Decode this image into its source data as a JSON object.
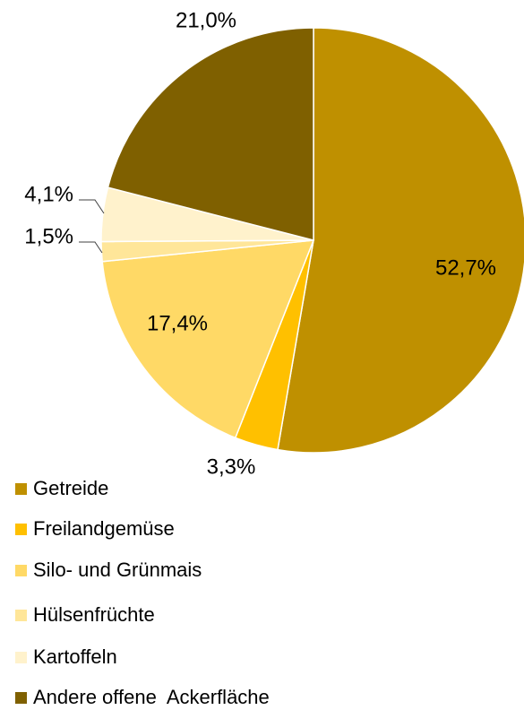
{
  "chart_data": {
    "type": "pie",
    "categories": [
      "Getreide",
      "Freilandgemüse",
      "Silo- und Grünmais",
      "Hülsenfrüchte",
      "Kartoffeln",
      "Andere offene  Ackerfläche"
    ],
    "values": [
      52.7,
      3.3,
      17.4,
      1.5,
      4.1,
      21.0
    ],
    "value_labels": [
      "52,7%",
      "3,3%",
      "17,4%",
      "1,5%",
      "4,1%",
      "21,0%"
    ],
    "colors": [
      "#bf9000",
      "#ffc000",
      "#ffd966",
      "#ffe699",
      "#fff2cc",
      "#7f6000"
    ]
  }
}
